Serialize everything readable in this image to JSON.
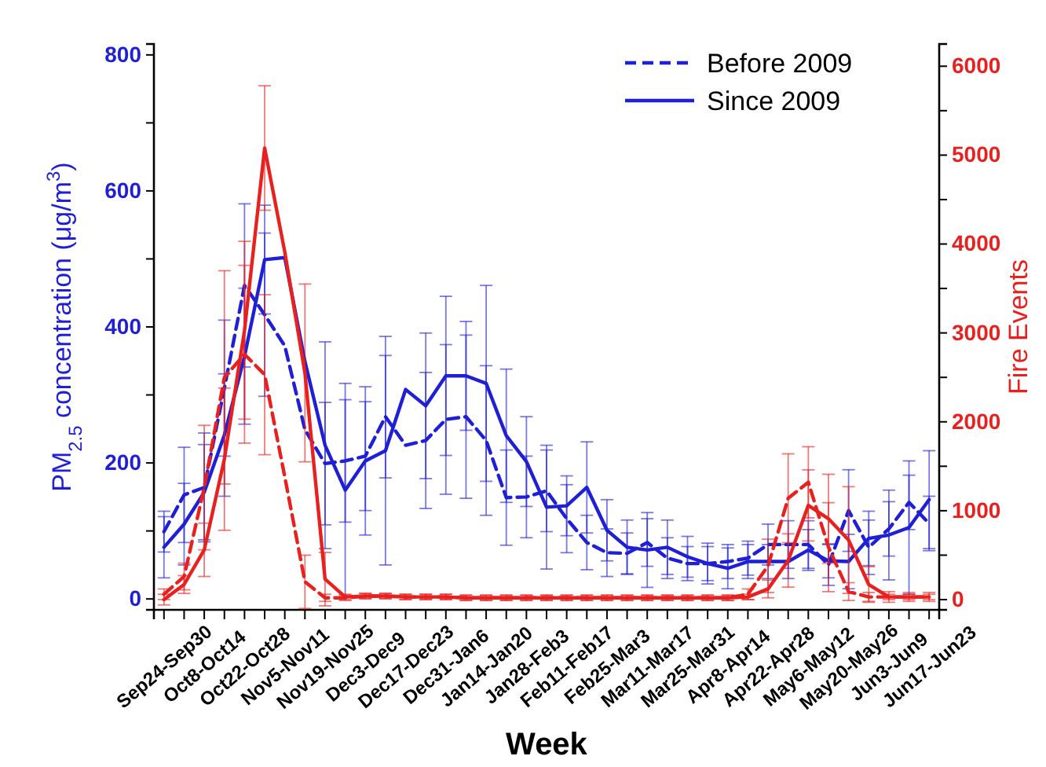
{
  "chart_data": {
    "type": "line",
    "xlabel": "Week",
    "ylabel": "PM$_{2.5}$ concentration (μg/m$^{3}$)",
    "y2label": "Fire Events",
    "categories": [
      "Sep24-Sep30",
      null,
      "Oct8-Oct14",
      null,
      "Oct22-Oct28",
      null,
      "Nov5-Nov11",
      null,
      "Nov19-Nov25",
      null,
      "Dec3-Dec9",
      null,
      "Dec17-Dec23",
      null,
      "Dec31-Jan6",
      null,
      "Jan14-Jan20",
      null,
      "Jan28-Feb3",
      null,
      "Feb11-Feb17",
      null,
      "Feb25-Mar3",
      null,
      "Mar11-Mar17",
      null,
      "Mar25-Mar31",
      null,
      "Apr8-Apr14",
      null,
      "Apr22-Apr28",
      null,
      "May6-May12",
      null,
      "May20-May26",
      null,
      "Jun3-Jun9",
      null,
      "Jun17-Jun23"
    ],
    "series": [
      {
        "name": "Before 2009",
        "color": "#1f1fd6",
        "line_style": "dashed",
        "values": [
          99,
          153,
          164,
          310,
          461,
          418,
          372,
          249,
          199,
          203,
          210,
          268,
          226,
          233,
          264,
          268,
          233,
          149,
          150,
          159,
          118,
          83,
          68,
          67,
          83,
          60,
          52,
          52,
          55,
          60,
          80,
          80,
          80,
          50,
          130,
          76,
          103,
          142,
          111
        ],
        "errors": [
          30,
          70,
          80,
          100,
          120,
          120,
          null,
          null,
          90,
          90,
          80,
          90,
          null,
          100,
          110,
          120,
          110,
          70,
          60,
          60,
          50,
          40,
          35,
          30,
          35,
          30,
          25,
          25,
          25,
          25,
          30,
          35,
          35,
          30,
          60,
          40,
          40,
          40,
          40
        ]
      },
      {
        "name": "Since 2009",
        "color": "#1f1fd6",
        "line_style": "solid",
        "values": [
          76,
          110,
          157,
          241,
          357,
          499,
          502,
          349,
          226,
          160,
          203,
          218,
          308,
          284,
          328,
          328,
          317,
          240,
          202,
          135,
          137,
          164,
          101,
          76,
          72,
          76,
          62,
          52,
          45,
          55,
          55,
          55,
          72,
          56,
          55,
          89,
          94,
          105,
          146
        ],
        "errors": [
          45,
          60,
          70,
          90,
          100,
          80,
          null,
          null,
          152,
          157,
          109,
          168,
          null,
          107,
          117,
          80,
          144,
          98,
          66,
          91,
          44,
          67,
          45,
          40,
          55,
          40,
          30,
          30,
          30,
          25,
          25,
          25,
          30,
          25,
          40,
          40,
          66,
          98,
          72
        ]
      },
      {
        "color": "#e8201e",
        "axis": "y2",
        "line_style": "dashed",
        "values": [
          60,
          260,
          1260,
          2500,
          2760,
          2530,
          1380,
          200,
          20,
          20,
          40,
          40,
          30,
          30,
          30,
          20,
          20,
          20,
          20,
          20,
          20,
          20,
          20,
          20,
          20,
          20,
          20,
          20,
          20,
          60,
          380,
          1140,
          1320,
          590,
          90,
          30,
          30,
          30,
          30
        ],
        "errors": [
          60,
          150,
          700,
          1200,
          1000,
          900,
          null,
          300,
          40,
          30,
          30,
          30,
          30,
          30,
          30,
          30,
          30,
          30,
          30,
          30,
          30,
          30,
          30,
          30,
          30,
          30,
          30,
          30,
          30,
          60,
          300,
          500,
          400,
          500,
          100,
          50,
          30,
          30,
          30
        ]
      },
      {
        "color": "#e8201e",
        "axis": "y2",
        "line_style": "solid",
        "values": [
          0,
          170,
          560,
          1580,
          3030,
          5080,
          3910,
          2550,
          230,
          30,
          40,
          40,
          30,
          30,
          30,
          20,
          20,
          20,
          20,
          20,
          20,
          20,
          20,
          20,
          20,
          20,
          20,
          20,
          20,
          30,
          120,
          440,
          1060,
          910,
          670,
          170,
          30,
          30,
          30
        ],
        "errors": [
          60,
          100,
          300,
          800,
          1000,
          700,
          null,
          1000,
          300,
          30,
          30,
          30,
          30,
          30,
          30,
          30,
          30,
          30,
          30,
          30,
          30,
          30,
          30,
          30,
          30,
          30,
          30,
          30,
          30,
          30,
          100,
          300,
          400,
          500,
          600,
          200,
          60,
          50,
          50
        ]
      }
    ],
    "ylim": [
      -16,
      816
    ],
    "yticks": [
      0,
      {
        "value": 100,
        "label": null
      },
      200,
      {
        "value": 300,
        "label": null
      },
      400,
      {
        "value": 500,
        "label": null
      },
      600,
      {
        "value": 700,
        "label": null
      },
      800
    ],
    "y2lim": [
      -115,
      6250
    ],
    "y2ticks": [
      0,
      {
        "value": 500,
        "label": null
      },
      1000,
      {
        "value": 1500,
        "label": null
      },
      2000,
      {
        "value": 2500,
        "label": null
      },
      3000,
      {
        "value": 3500,
        "label": null
      },
      4000,
      {
        "value": 4500,
        "label": null
      },
      5000,
      {
        "value": 5500,
        "label": null
      },
      6000
    ],
    "marker": "none",
    "grid": false,
    "legend": "top right"
  }
}
